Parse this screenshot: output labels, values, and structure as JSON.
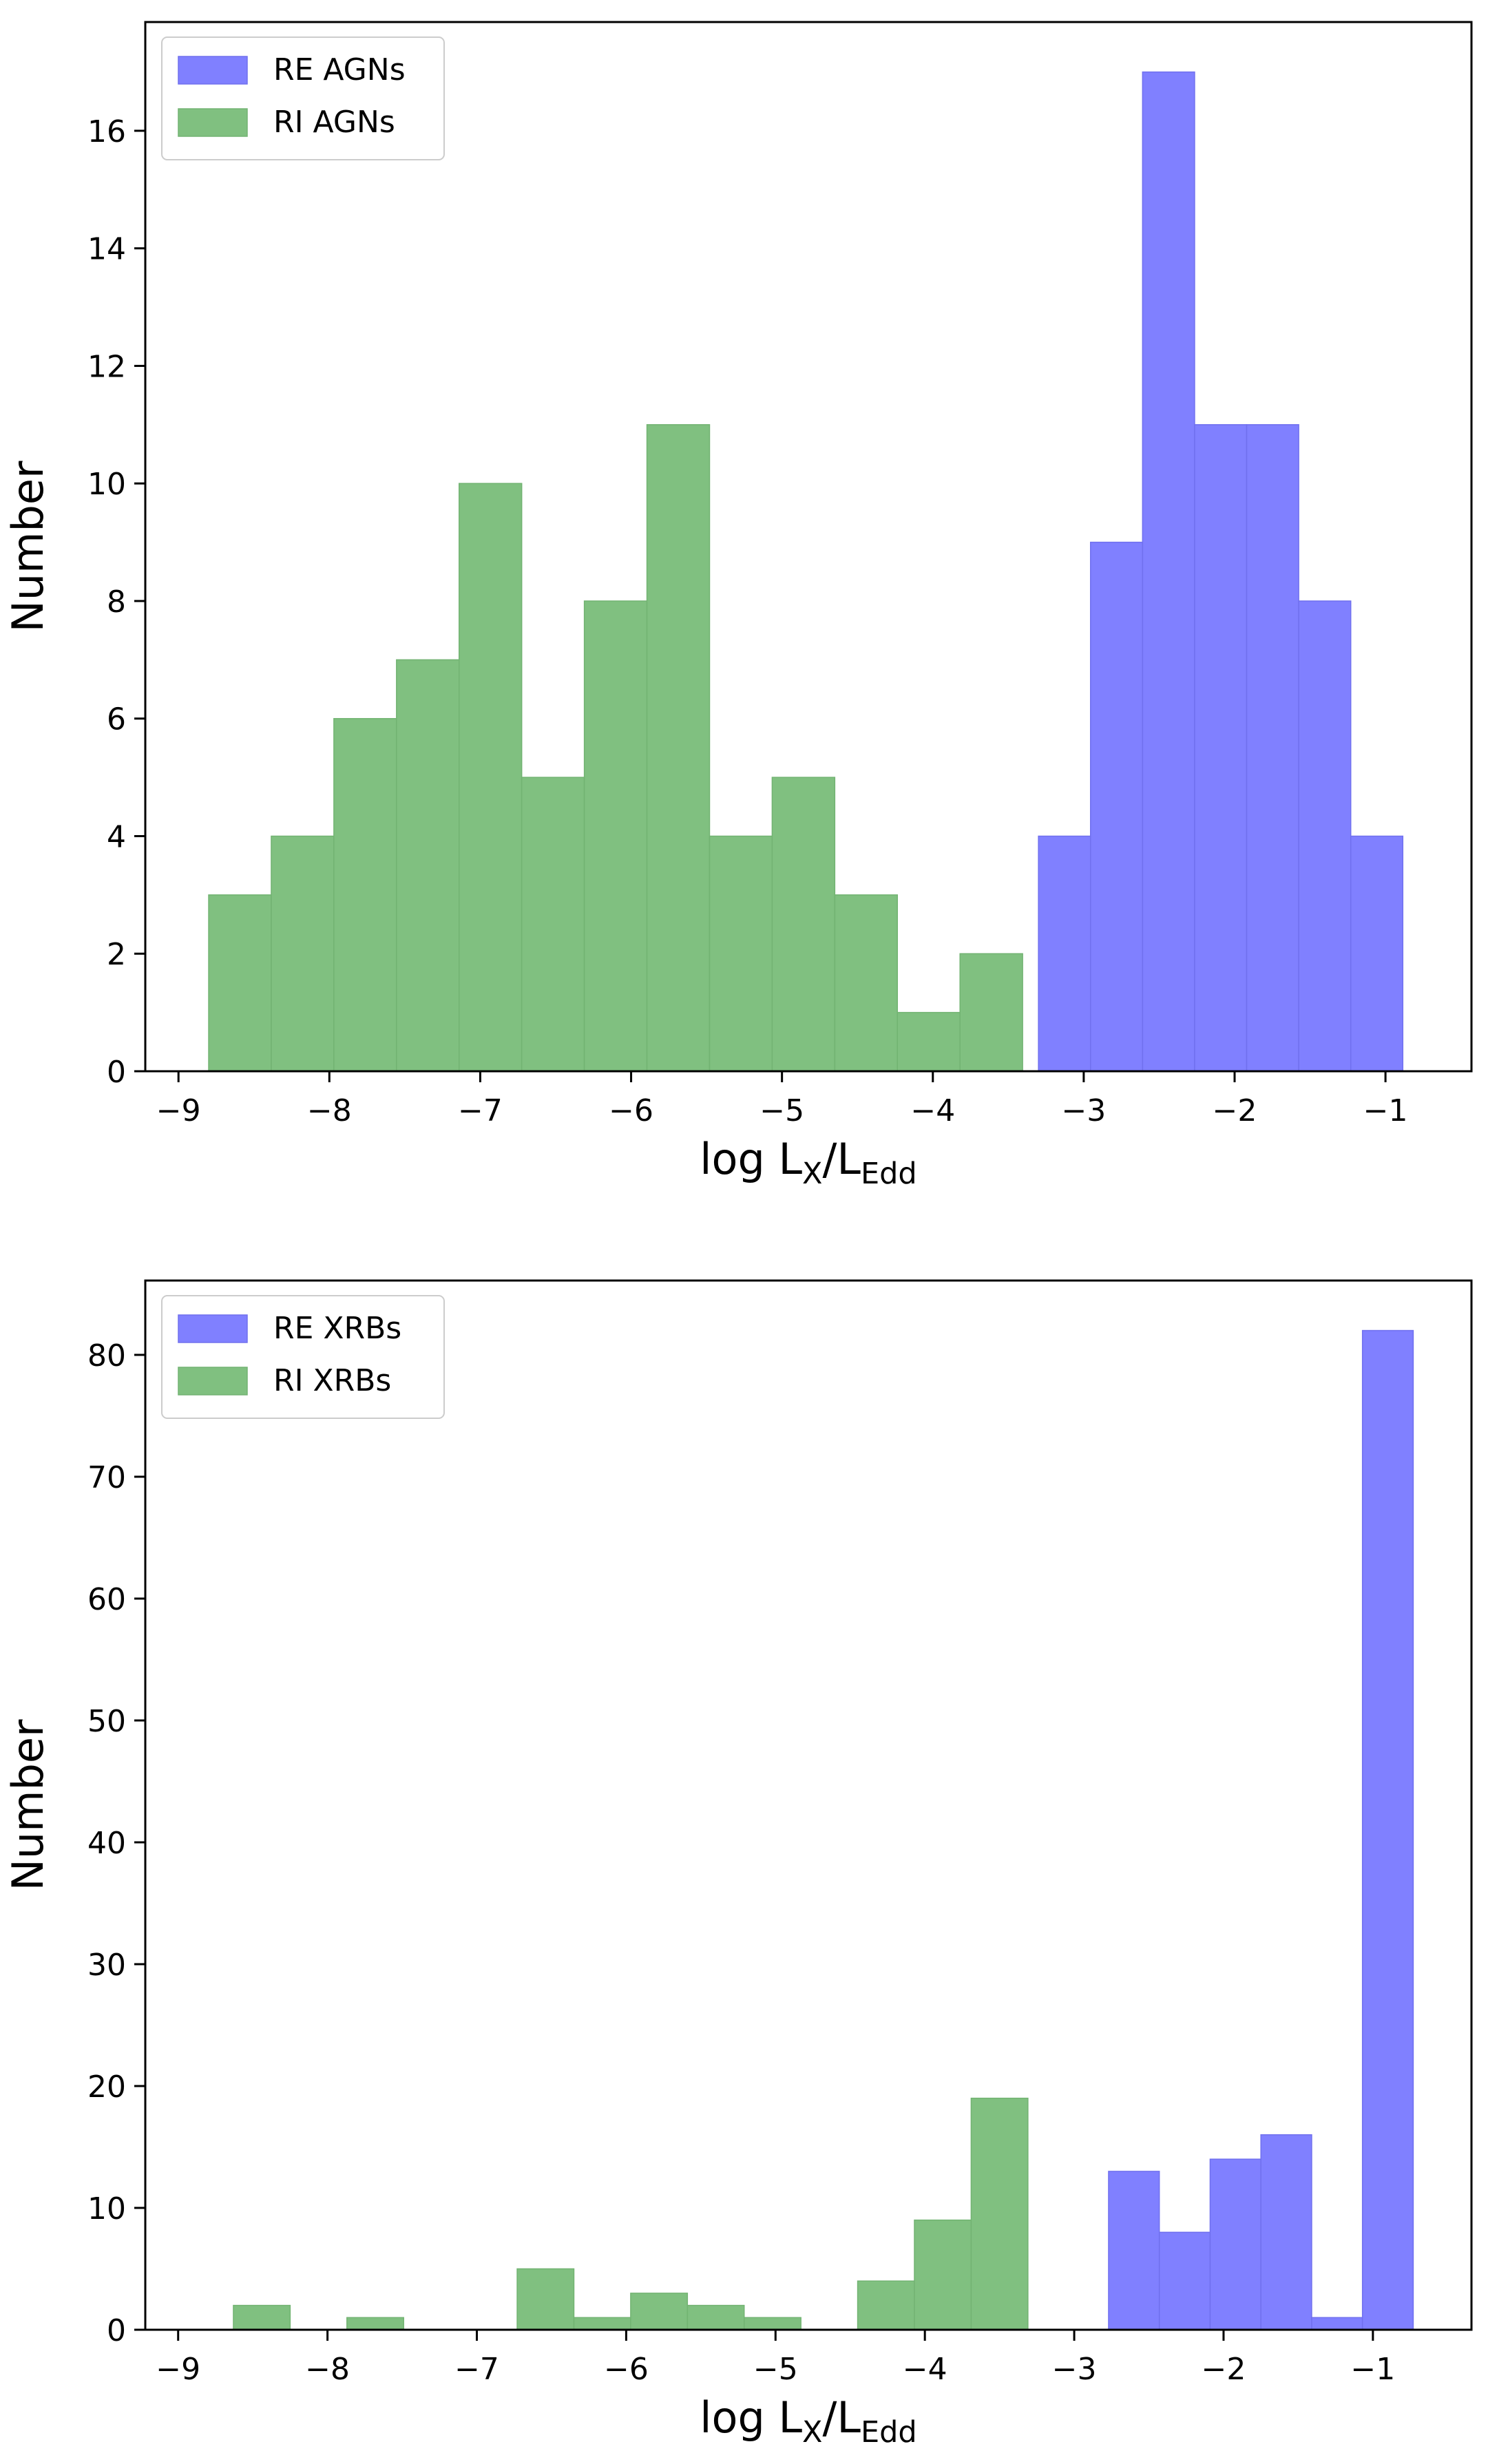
{
  "colors": {
    "re": "#8080ff",
    "re_edge": "#7070ee",
    "ri": "#80c080",
    "ri_edge": "#72b372",
    "axes": "#000000"
  },
  "chart_data": [
    {
      "type": "bar",
      "kind": "histogram",
      "title": "",
      "xlabel": {
        "main": "log L",
        "sub1": "X",
        "sep": "/L",
        "sub2": "Edd"
      },
      "ylabel": "Number",
      "xlim": [
        -9.22,
        -0.43
      ],
      "ylim": [
        0,
        17.85
      ],
      "xticks": [
        -9,
        -8,
        -7,
        -6,
        -5,
        -4,
        -3,
        -2,
        -1
      ],
      "xtick_labels": [
        "−9",
        "−8",
        "−7",
        "−6",
        "−5",
        "−4",
        "−3",
        "−2",
        "−1"
      ],
      "yticks": [
        0,
        2,
        4,
        6,
        8,
        10,
        12,
        14,
        16
      ],
      "ytick_labels": [
        "0",
        "2",
        "4",
        "6",
        "8",
        "10",
        "12",
        "14",
        "16"
      ],
      "legend_position": "top-left",
      "series": [
        {
          "name": "RE AGNs",
          "color_key": "re",
          "bin_edges": [
            -3.3,
            -2.955,
            -2.61,
            -2.265,
            -1.92,
            -1.575,
            -1.23,
            -0.885
          ],
          "values": [
            4,
            9,
            17,
            11,
            11,
            8,
            4
          ]
        },
        {
          "name": "RI AGNs",
          "color_key": "ri",
          "bin_edges": [
            -8.8,
            -8.385,
            -7.97,
            -7.555,
            -7.14,
            -6.725,
            -6.31,
            -5.895,
            -5.48,
            -5.065,
            -4.65,
            -4.235,
            -3.82,
            -3.405
          ],
          "values": [
            3,
            4,
            6,
            7,
            10,
            5,
            8,
            11,
            4,
            5,
            3,
            1,
            2
          ]
        }
      ]
    },
    {
      "type": "bar",
      "kind": "histogram",
      "title": "",
      "xlabel": {
        "main": "log L",
        "sub1": "X",
        "sep": "/L",
        "sub2": "Edd"
      },
      "ylabel": "Number",
      "xlim": [
        -9.22,
        -0.34
      ],
      "ylim": [
        0,
        86.1
      ],
      "xticks": [
        -9,
        -8,
        -7,
        -6,
        -5,
        -4,
        -3,
        -2,
        -1
      ],
      "xtick_labels": [
        "−9",
        "−8",
        "−7",
        "−6",
        "−5",
        "−4",
        "−3",
        "−2",
        "−1"
      ],
      "yticks": [
        0,
        10,
        20,
        30,
        40,
        50,
        60,
        70,
        80
      ],
      "ytick_labels": [
        "0",
        "10",
        "20",
        "30",
        "40",
        "50",
        "60",
        "70",
        "80"
      ],
      "legend_position": "top-left",
      "series": [
        {
          "name": "RE XRBs",
          "color_key": "re",
          "bin_edges": [
            -2.77,
            -2.43,
            -2.09,
            -1.75,
            -1.41,
            -1.07,
            -0.73
          ],
          "values": [
            13,
            8,
            14,
            16,
            1,
            82
          ]
        },
        {
          "name": "RI XRBs",
          "color_key": "ri",
          "bin_edges": [
            -8.63,
            -8.25,
            -7.87,
            -7.49,
            -7.11,
            -6.73,
            -6.35,
            -5.97,
            -5.59,
            -5.21,
            -4.83,
            -4.45,
            -4.07,
            -3.69,
            -3.31,
            -2.93
          ],
          "values": [
            2,
            0,
            1,
            0,
            0,
            5,
            1,
            3,
            2,
            1,
            0,
            4,
            9,
            19,
            0
          ]
        }
      ]
    }
  ]
}
